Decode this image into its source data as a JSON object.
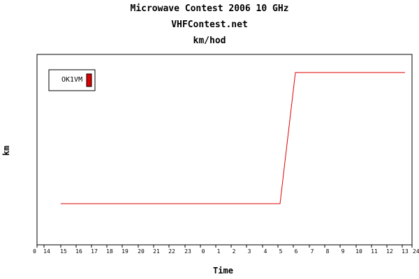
{
  "chart_data": {
    "type": "line",
    "title": "Microwave Contest 2006 10 GHz",
    "subtitle": "VHFContest.net",
    "subtitle2": "km/hod",
    "xlabel": "Time",
    "ylabel": "km",
    "x_tick_labels": [
      "0",
      "14",
      "15",
      "16",
      "17",
      "18",
      "19",
      "20",
      "21",
      "22",
      "23",
      "0",
      "1",
      "2",
      "3",
      "4",
      "5",
      "6",
      "7",
      "8",
      "9",
      "10",
      "11",
      "12",
      "13",
      "24"
    ],
    "legend_position": "top-left",
    "grid": false,
    "series": [
      {
        "name": "OK1VM",
        "color": "#dd0000",
        "points": [
          {
            "x": "15",
            "y": 1
          },
          {
            "x": "5",
            "y": 1
          },
          {
            "x": "6",
            "y": 2
          },
          {
            "x": "13",
            "y": 2
          }
        ]
      }
    ]
  }
}
